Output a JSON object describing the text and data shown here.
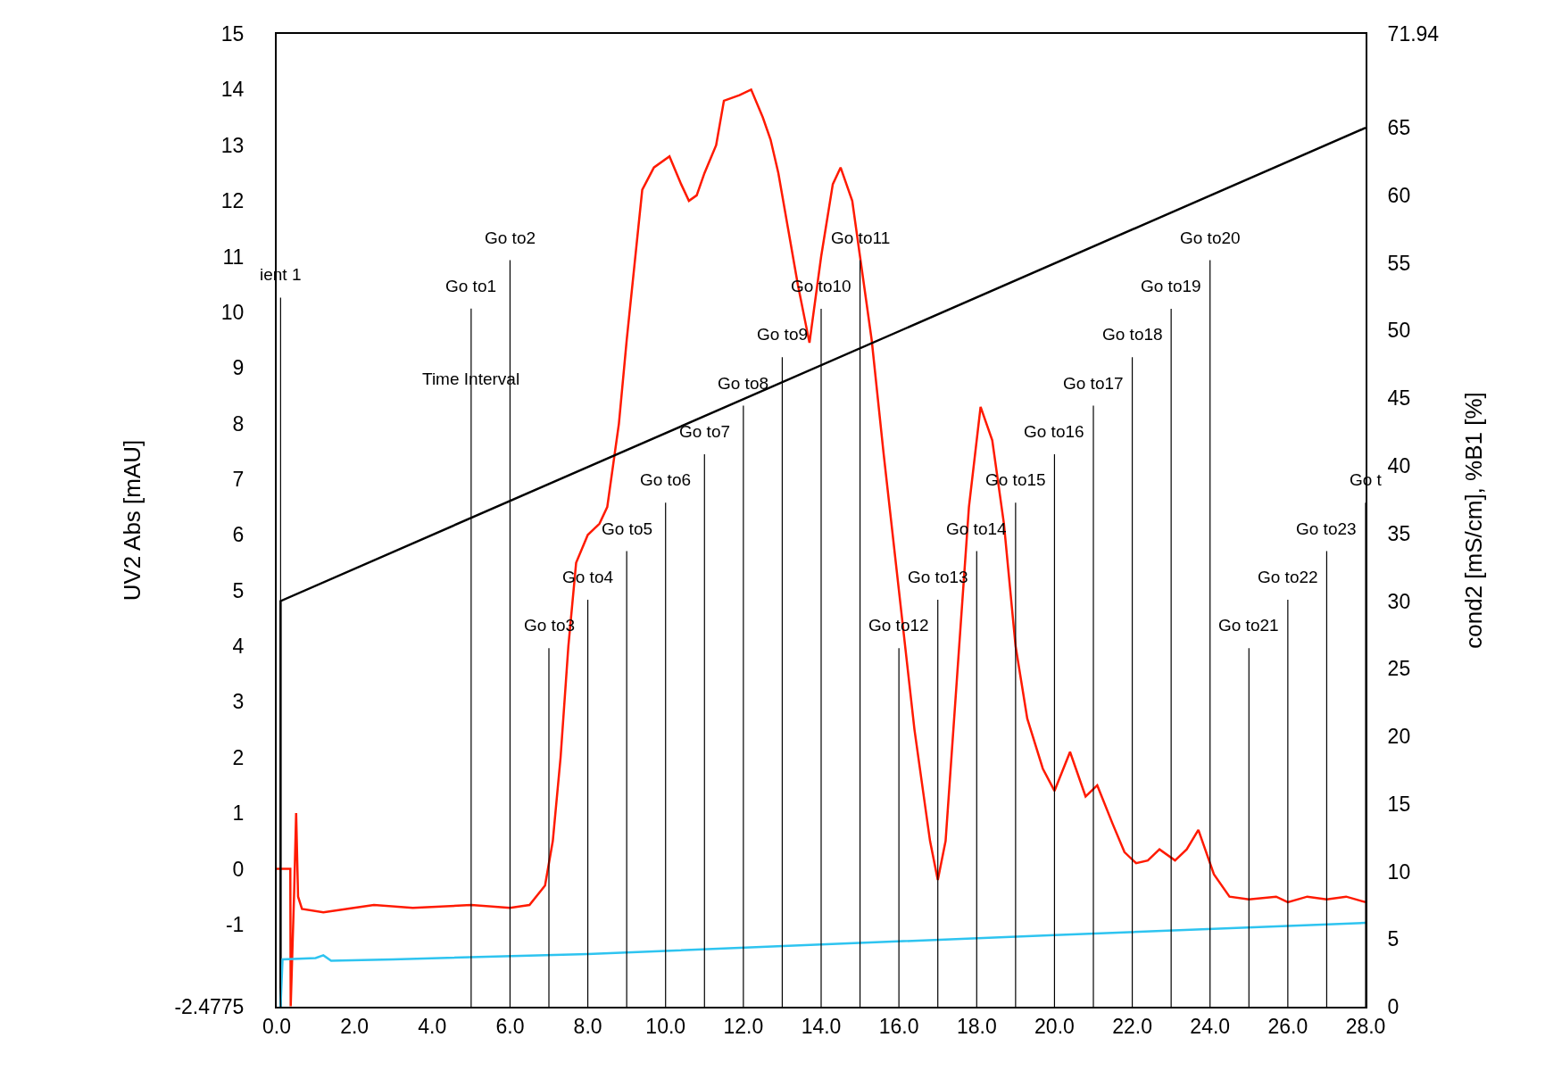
{
  "chart_data": {
    "type": "line",
    "ylabel": "UV2 Abs [mAU]",
    "y2label": "cond2 [mS/cm], %B1 [%]",
    "xlim": [
      0,
      28
    ],
    "xticks": [
      {
        "value": 0,
        "label": "0.0"
      },
      {
        "value": 2,
        "label": "2.0"
      },
      {
        "value": 4,
        "label": "4.0"
      },
      {
        "value": 6,
        "label": "6.0"
      },
      {
        "value": 8,
        "label": "8.0"
      },
      {
        "value": 10,
        "label": "10.0"
      },
      {
        "value": 12,
        "label": "12.0"
      },
      {
        "value": 14,
        "label": "14.0"
      },
      {
        "value": 16,
        "label": "16.0"
      },
      {
        "value": 18,
        "label": "18.0"
      },
      {
        "value": 20,
        "label": "20.0"
      },
      {
        "value": 22,
        "label": "22.0"
      },
      {
        "value": 24,
        "label": "24.0"
      },
      {
        "value": 26,
        "label": "26.0"
      },
      {
        "value": 28,
        "label": "28.0"
      }
    ],
    "ylim": [
      -2.4775,
      15
    ],
    "yticks": [
      -2.4775,
      -1,
      0,
      1,
      2,
      3,
      4,
      5,
      6,
      7,
      8,
      9,
      10,
      11,
      12,
      13,
      14,
      15
    ],
    "y2lim": [
      0,
      71.94
    ],
    "y2ticks": [
      0,
      5,
      10,
      15,
      20,
      25,
      30,
      35,
      40,
      45,
      50,
      55,
      60,
      65,
      71.94
    ],
    "annotations": [
      {
        "text": "Time Interval",
        "x": 5,
        "y": 8.6
      }
    ],
    "marker": "none",
    "line_style": "solid",
    "series": [
      {
        "color": "#ff1a00",
        "x": [
          0,
          0.35,
          0.36,
          0.45,
          0.5,
          0.55,
          0.65,
          1.2,
          2.5,
          3.5,
          5,
          6,
          6.5,
          6.9,
          7.1,
          7.3,
          7.5,
          7.7,
          8,
          8.3,
          8.5,
          8.8,
          9.0,
          9.4,
          9.7,
          10.1,
          10.4,
          10.6,
          10.8,
          11.0,
          11.3,
          11.5,
          11.9,
          12.2,
          12.5,
          12.7,
          12.9,
          13.15,
          13.4,
          13.7,
          14.0,
          14.3,
          14.5,
          14.8,
          15.0,
          15.3,
          15.6,
          16.0,
          16.4,
          16.8,
          17.0,
          17.2,
          17.5,
          17.8,
          18.1,
          18.4,
          18.7,
          19.0,
          19.3,
          19.7,
          20.0,
          20.4,
          20.8,
          21.1,
          21.5,
          21.8,
          22.1,
          22.4,
          22.7,
          23.1,
          23.4,
          23.7,
          24.1,
          24.5,
          25,
          25.7,
          26,
          26.5,
          27,
          27.5,
          28
        ],
        "values": [
          0,
          0,
          -2.47,
          -0.4,
          1.0,
          -0.5,
          -0.72,
          -0.78,
          -0.65,
          -0.7,
          -0.65,
          -0.7,
          -0.65,
          -0.3,
          0.5,
          2,
          4,
          5.5,
          6.0,
          6.2,
          6.5,
          8,
          9.5,
          12.2,
          12.6,
          12.8,
          12.3,
          12.0,
          12.1,
          12.5,
          13.0,
          13.8,
          13.9,
          14.0,
          13.5,
          13.1,
          12.5,
          11.5,
          10.5,
          9.45,
          11.0,
          12.3,
          12.6,
          12.0,
          11.0,
          9.5,
          7.5,
          5.0,
          2.5,
          0.5,
          -0.2,
          0.5,
          3.5,
          6.5,
          8.3,
          7.7,
          6.2,
          4.0,
          2.7,
          1.8,
          1.4,
          2.1,
          1.3,
          1.5,
          0.8,
          0.3,
          0.1,
          0.15,
          0.35,
          0.15,
          0.35,
          0.7,
          -0.1,
          -0.5,
          -0.55,
          -0.5,
          -0.6,
          -0.5,
          -0.55,
          -0.5,
          -0.6
        ]
      },
      {
        "color": "#000000",
        "axis": "y2",
        "x": [
          0.1,
          0.1,
          28
        ],
        "values": [
          0,
          30,
          65
        ]
      },
      {
        "color": "#2ec4f0",
        "axis": "y2",
        "x": [
          0.1,
          0.15,
          1.0,
          1.2,
          1.4,
          3,
          8,
          14,
          20,
          28
        ],
        "values": [
          0,
          3.5,
          3.6,
          3.8,
          3.4,
          3.5,
          3.9,
          4.6,
          5.3,
          6.2
        ]
      }
    ],
    "ref_lines": [
      {
        "axis": "x",
        "value": 0.1,
        "label": "ient 1",
        "color": "#000000"
      },
      {
        "axis": "x",
        "value": 5,
        "label": "Go to1",
        "color": "#000000"
      },
      {
        "axis": "x",
        "value": 6,
        "label": "Go to2",
        "color": "#000000"
      },
      {
        "axis": "x",
        "value": 7,
        "label": "Go to3",
        "color": "#000000"
      },
      {
        "axis": "x",
        "value": 8,
        "label": "Go to4",
        "color": "#000000"
      },
      {
        "axis": "x",
        "value": 9,
        "label": "Go to5",
        "color": "#000000"
      },
      {
        "axis": "x",
        "value": 10,
        "label": "Go to6",
        "color": "#000000"
      },
      {
        "axis": "x",
        "value": 11,
        "label": "Go to7",
        "color": "#000000"
      },
      {
        "axis": "x",
        "value": 12,
        "label": "Go to8",
        "color": "#000000"
      },
      {
        "axis": "x",
        "value": 13,
        "label": "Go to9",
        "color": "#000000"
      },
      {
        "axis": "x",
        "value": 14,
        "label": "Go to10",
        "color": "#000000"
      },
      {
        "axis": "x",
        "value": 15,
        "label": "Go to11",
        "color": "#000000"
      },
      {
        "axis": "x",
        "value": 16,
        "label": "Go to12",
        "color": "#000000"
      },
      {
        "axis": "x",
        "value": 17,
        "label": "Go to13",
        "color": "#000000"
      },
      {
        "axis": "x",
        "value": 18,
        "label": "Go to14",
        "color": "#000000"
      },
      {
        "axis": "x",
        "value": 19,
        "label": "Go to15",
        "color": "#000000"
      },
      {
        "axis": "x",
        "value": 20,
        "label": "Go to16",
        "color": "#000000"
      },
      {
        "axis": "x",
        "value": 21,
        "label": "Go to17",
        "color": "#000000"
      },
      {
        "axis": "x",
        "value": 22,
        "label": "Go to18",
        "color": "#000000"
      },
      {
        "axis": "x",
        "value": 23,
        "label": "Go to19",
        "color": "#000000"
      },
      {
        "axis": "x",
        "value": 24,
        "label": "Go to20",
        "color": "#000000"
      },
      {
        "axis": "x",
        "value": 25,
        "label": "Go to21",
        "color": "#000000"
      },
      {
        "axis": "x",
        "value": 26,
        "label": "Go to22",
        "color": "#000000"
      },
      {
        "axis": "x",
        "value": 27,
        "label": "Go to23",
        "color": "#000000"
      },
      {
        "axis": "x",
        "value": 28,
        "label": "Go t",
        "color": "#000000"
      }
    ]
  }
}
